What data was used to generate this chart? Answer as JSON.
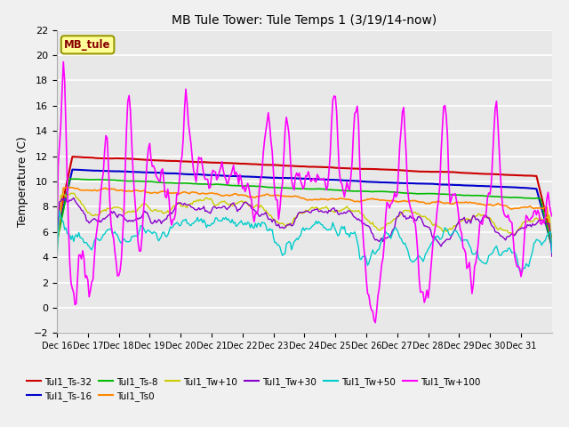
{
  "title": "MB Tule Tower: Tule Temps 1 (3/19/14-now)",
  "ylabel": "Temperature (C)",
  "ylim": [
    -2,
    22
  ],
  "yticks": [
    -2,
    0,
    2,
    4,
    6,
    8,
    10,
    12,
    14,
    16,
    18,
    20,
    22
  ],
  "x_tick_labels": [
    "Dec 16",
    "Dec 17",
    "Dec 18",
    "Dec 19",
    "Dec 20",
    "Dec 21",
    "Dec 22",
    "Dec 23",
    "Dec 24",
    "Dec 25",
    "Dec 26",
    "Dec 27",
    "Dec 28",
    "Dec 29",
    "Dec 30",
    "Dec 31"
  ],
  "legend_label": "MB_tule",
  "series_colors": {
    "Tul1_Ts-32": "#cc0000",
    "Tul1_Ts-16": "#0000cc",
    "Tul1_Ts-8": "#00bb00",
    "Tul1_Ts0": "#ff8800",
    "Tul1_Tw+10": "#cccc00",
    "Tul1_Tw+30": "#8800cc",
    "Tul1_Tw+50": "#00cccc",
    "Tul1_Tw+100": "#ff00ff"
  },
  "legend_order": [
    "Tul1_Ts-32",
    "Tul1_Ts-16",
    "Tul1_Ts-8",
    "Tul1_Ts0",
    "Tul1_Tw+10",
    "Tul1_Tw+30",
    "Tul1_Tw+50",
    "Tul1_Tw+100"
  ],
  "background_color": "#e8e8e8",
  "grid_color": "#ffffff",
  "fig_bg": "#f0f0f0"
}
